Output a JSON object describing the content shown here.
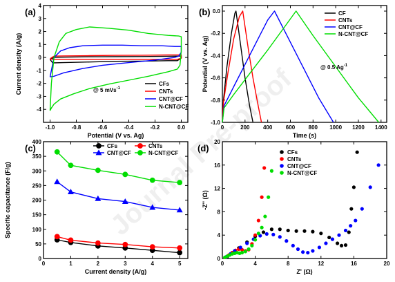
{
  "watermark": "Journal Pre-proof",
  "colors": {
    "black": "#000000",
    "red": "#ff0000",
    "blue": "#0000ff",
    "green": "#00dd00"
  },
  "chart_data": [
    {
      "id": "a",
      "panel_label": "(a)",
      "type": "line",
      "xlabel": "Potential (V vs. Ag)",
      "ylabel": "Current density (A/g)",
      "xlim": [
        -1.05,
        0.05
      ],
      "ylim": [
        -5,
        4
      ],
      "xticks": [
        -1.0,
        -0.8,
        -0.6,
        -0.4,
        -0.2,
        0.0
      ],
      "xtick_labels": [
        "-1.0",
        "-0.8",
        "-0.6",
        "-0.4",
        "-0.2",
        "0.0"
      ],
      "yticks": [
        -4,
        -3,
        -2,
        -1,
        0,
        1,
        2,
        3,
        4
      ],
      "ytick_labels": [
        "-4",
        "-3",
        "-2",
        "-1",
        "0",
        "1",
        "2",
        "3",
        "4"
      ],
      "annotation": {
        "text": "@ 5 mVs",
        "sup": "-1"
      },
      "legend_position": "bottom-right",
      "series": [
        {
          "name": "CFs",
          "color": "#000000",
          "x": [
            -1.0,
            -0.97,
            -0.9,
            -0.7,
            -0.5,
            -0.3,
            -0.1,
            -0.02,
            0.0,
            0.0,
            -0.03,
            -0.1,
            -0.3,
            -0.5,
            -0.7,
            -0.9,
            -0.98,
            -1.0
          ],
          "y": [
            -0.15,
            0.0,
            0.02,
            0.05,
            0.06,
            0.07,
            0.09,
            0.1,
            0.1,
            -0.05,
            -0.25,
            -0.25,
            -0.28,
            -0.3,
            -0.35,
            -0.4,
            -0.42,
            -0.15
          ]
        },
        {
          "name": "CNTs",
          "color": "#ff0000",
          "x": [
            -1.0,
            -0.97,
            -0.9,
            -0.7,
            -0.5,
            -0.3,
            -0.1,
            -0.02,
            0.0,
            0.0,
            -0.03,
            -0.1,
            -0.3,
            -0.5,
            -0.7,
            -0.9,
            -0.98,
            -1.0
          ],
          "y": [
            -0.1,
            0.1,
            0.12,
            0.14,
            0.16,
            0.17,
            0.19,
            0.2,
            0.2,
            -0.05,
            -0.15,
            -0.15,
            -0.15,
            -0.15,
            -0.15,
            -0.15,
            -0.15,
            -0.1
          ]
        },
        {
          "name": "CNT@CF",
          "color": "#0000ff",
          "x": [
            -1.0,
            -0.97,
            -0.92,
            -0.85,
            -0.75,
            -0.6,
            -0.45,
            -0.3,
            -0.15,
            -0.05,
            0.0,
            0.0,
            -0.02,
            -0.05,
            -0.2,
            -0.4,
            -0.6,
            -0.75,
            -0.9,
            -0.97,
            -1.0
          ],
          "y": [
            -1.5,
            0.0,
            0.5,
            0.75,
            0.9,
            0.95,
            0.95,
            0.9,
            0.9,
            0.85,
            0.85,
            0.4,
            0.1,
            0.0,
            -0.2,
            -0.4,
            -0.6,
            -0.85,
            -1.2,
            -1.45,
            -1.5
          ]
        },
        {
          "name": "N-CNT@CF",
          "color": "#00dd00",
          "x": [
            -1.0,
            -0.99,
            -0.97,
            -0.93,
            -0.88,
            -0.8,
            -0.7,
            -0.55,
            -0.4,
            -0.25,
            -0.1,
            -0.02,
            0.0,
            0.0,
            -0.01,
            -0.03,
            -0.1,
            -0.25,
            -0.4,
            -0.55,
            -0.7,
            -0.82,
            -0.92,
            -0.97,
            -0.99,
            -1.0
          ],
          "y": [
            -4.1,
            -2.0,
            0.0,
            1.2,
            1.85,
            2.15,
            2.35,
            2.25,
            2.1,
            1.85,
            1.7,
            1.65,
            1.6,
            0.5,
            -0.6,
            -0.9,
            -1.1,
            -1.45,
            -1.75,
            -2.05,
            -2.4,
            -2.8,
            -3.2,
            -3.6,
            -3.9,
            -4.1
          ]
        }
      ]
    },
    {
      "id": "b",
      "panel_label": "(b)",
      "type": "line",
      "xlabel": "Time (s)",
      "ylabel": "Potential (V vs. Ag)",
      "xlim": [
        0,
        1450
      ],
      "ylim": [
        -1.0,
        0.05
      ],
      "xticks": [
        0,
        200,
        400,
        600,
        800,
        1000,
        1200,
        1400
      ],
      "xtick_labels": [
        "0",
        "200",
        "400",
        "600",
        "800",
        "1000",
        "1200",
        "1400"
      ],
      "yticks": [
        -1.0,
        -0.8,
        -0.6,
        -0.4,
        -0.2,
        0.0
      ],
      "ytick_labels": [
        "-1.0",
        "-0.8",
        "-0.6",
        "-0.4",
        "-0.2",
        "0.0"
      ],
      "annotation": {
        "text": "@ 0.5 Ag",
        "sup": "-1"
      },
      "legend_position": "top-right",
      "series": [
        {
          "name": "CF",
          "color": "#000000",
          "x": [
            0,
            10,
            40,
            80,
            110,
            120,
            160,
            200,
            240,
            270
          ],
          "y": [
            -1.0,
            -0.8,
            -0.5,
            -0.2,
            -0.02,
            0.0,
            -0.3,
            -0.6,
            -0.85,
            -1.0
          ]
        },
        {
          "name": "CNTs",
          "color": "#ff0000",
          "x": [
            0,
            10,
            50,
            100,
            150,
            180,
            230,
            270,
            310,
            345
          ],
          "y": [
            -1.0,
            -0.82,
            -0.55,
            -0.25,
            -0.05,
            0.0,
            -0.35,
            -0.6,
            -0.82,
            -1.0
          ]
        },
        {
          "name": "CNT@CF",
          "color": "#0000ff",
          "x": [
            0,
            15,
            100,
            200,
            300,
            400,
            460,
            560,
            700,
            850,
            980
          ],
          "y": [
            -1.0,
            -0.85,
            -0.68,
            -0.48,
            -0.28,
            -0.08,
            0.0,
            -0.2,
            -0.48,
            -0.78,
            -1.0
          ]
        },
        {
          "name": "N-CNT@CF",
          "color": "#00dd00",
          "x": [
            0,
            15,
            100,
            250,
            400,
            550,
            650,
            800,
            1000,
            1200,
            1380
          ],
          "y": [
            -1.0,
            -0.87,
            -0.75,
            -0.55,
            -0.35,
            -0.14,
            0.0,
            -0.22,
            -0.5,
            -0.78,
            -1.0
          ]
        }
      ]
    },
    {
      "id": "c",
      "panel_label": "(c)",
      "type": "line",
      "xlabel": "Current density (A/g)",
      "ylabel": "Specific capacitance (F/g)",
      "xlim": [
        0,
        5.3
      ],
      "ylim": [
        0,
        400
      ],
      "xticks": [
        0,
        1,
        2,
        3,
        4,
        5
      ],
      "xtick_labels": [
        "0",
        "1",
        "2",
        "3",
        "4",
        "5"
      ],
      "yticks": [
        0,
        50,
        100,
        150,
        200,
        250,
        300,
        350,
        400
      ],
      "ytick_labels": [
        "0",
        "50",
        "100",
        "150",
        "200",
        "250",
        "300",
        "350",
        "400"
      ],
      "legend_position": "top",
      "series": [
        {
          "name": "CFs",
          "color": "#000000",
          "marker": "circle",
          "x": [
            0.5,
            1,
            2,
            3,
            4,
            5
          ],
          "y": [
            64,
            55,
            43,
            36,
            28,
            20
          ]
        },
        {
          "name": "CNTs",
          "color": "#ff0000",
          "marker": "circle",
          "x": [
            0.5,
            1,
            2,
            3,
            4,
            5
          ],
          "y": [
            75,
            63,
            53,
            48,
            40,
            36
          ]
        },
        {
          "name": "CNT@CF",
          "color": "#0000ff",
          "marker": "triangle",
          "x": [
            0.5,
            1,
            2,
            3,
            4,
            5
          ],
          "y": [
            263,
            228,
            205,
            195,
            175,
            166
          ]
        },
        {
          "name": "N-CNT@CF",
          "color": "#00dd00",
          "marker": "circle",
          "x": [
            0.5,
            1,
            2,
            3,
            4,
            5
          ],
          "y": [
            365,
            319,
            302,
            288,
            268,
            260
          ]
        }
      ]
    },
    {
      "id": "d",
      "panel_label": "(d)",
      "type": "scatter",
      "xlabel": "Z' (Ω)",
      "ylabel": "-Z'' (Ω)",
      "xlim": [
        0,
        20
      ],
      "ylim": [
        0,
        20
      ],
      "xticks": [
        0,
        4,
        8,
        12,
        16,
        20
      ],
      "xtick_labels": [
        "0",
        "4",
        "8",
        "12",
        "16",
        "20"
      ],
      "yticks": [
        0,
        4,
        8,
        12,
        16,
        20
      ],
      "ytick_labels": [
        "0",
        "4",
        "8",
        "12",
        "16",
        "20"
      ],
      "legend_position": "top-left",
      "series": [
        {
          "name": "CFs",
          "color": "#000000",
          "x": [
            0.6,
            1.2,
            2.0,
            3.0,
            4.0,
            5.0,
            6.0,
            7.0,
            8.0,
            9.0,
            10.0,
            11.0,
            12.0,
            13.0,
            14.0,
            14.5,
            15.0,
            15.4,
            15.7,
            16.0,
            16.4
          ],
          "y": [
            0.3,
            1.0,
            1.8,
            2.8,
            3.8,
            4.5,
            5.0,
            5.0,
            4.8,
            4.7,
            4.7,
            4.6,
            4.3,
            3.6,
            2.6,
            2.2,
            2.3,
            4.5,
            8.5,
            12.2,
            18.2
          ]
        },
        {
          "name": "CNTs",
          "color": "#ff0000",
          "x": [
            0.4,
            0.8,
            1.2,
            1.6,
            2.0,
            2.4,
            2.8,
            3.2,
            3.6,
            4.0,
            4.4,
            4.8,
            5.1
          ],
          "y": [
            0.2,
            0.6,
            1.0,
            1.4,
            1.6,
            1.5,
            1.3,
            1.5,
            2.5,
            4.0,
            6.5,
            10.5,
            15.5
          ]
        },
        {
          "name": "CNT@CF",
          "color": "#0000ff",
          "x": [
            0.5,
            1.0,
            1.5,
            2.2,
            3.0,
            3.8,
            4.6,
            5.4,
            6.2,
            7.0,
            7.8,
            8.6,
            9.2,
            9.8,
            10.4,
            11.0,
            11.8,
            12.6,
            13.4,
            14.2,
            15.0,
            15.6,
            16.2,
            17.0,
            18.0,
            19.0
          ],
          "y": [
            0.3,
            0.8,
            1.3,
            1.9,
            2.6,
            3.3,
            3.9,
            4.2,
            4.1,
            3.7,
            3.0,
            2.2,
            1.6,
            1.1,
            1.0,
            1.3,
            1.9,
            2.6,
            3.3,
            4.0,
            4.8,
            5.6,
            6.5,
            8.5,
            12.2,
            16.0
          ]
        },
        {
          "name": "N-CNT@CF",
          "color": "#00dd00",
          "x": [
            0.3,
            0.6,
            0.9,
            1.2,
            1.5,
            1.8,
            2.1,
            2.4,
            2.8,
            3.2,
            3.6,
            4.0,
            4.4,
            4.8,
            5.2,
            5.6,
            6.0
          ],
          "y": [
            0.2,
            0.4,
            0.6,
            0.8,
            0.9,
            1.0,
            0.9,
            1.0,
            1.2,
            1.6,
            2.2,
            3.2,
            4.3,
            5.3,
            7.2,
            10.5,
            15.0
          ]
        }
      ]
    }
  ]
}
